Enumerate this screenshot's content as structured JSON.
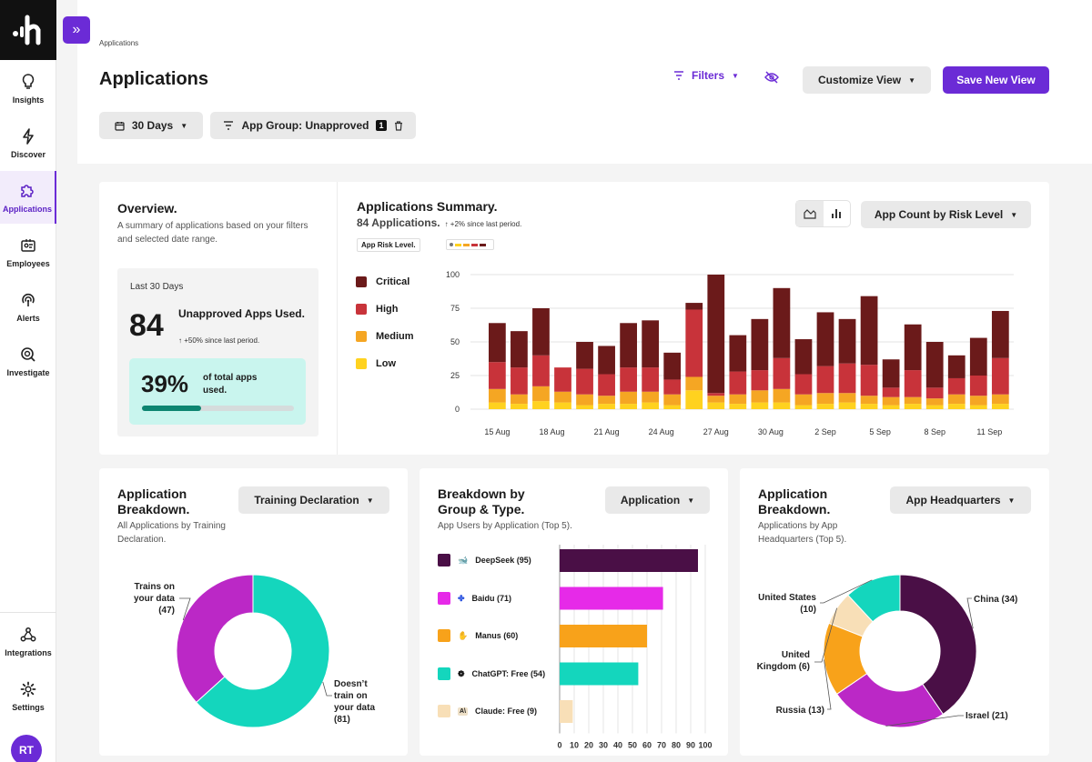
{
  "sidebar": {
    "items": [
      {
        "label": "Insights"
      },
      {
        "label": "Discover"
      },
      {
        "label": "Applications"
      },
      {
        "label": "Employees"
      },
      {
        "label": "Alerts"
      },
      {
        "label": "Investigate"
      },
      {
        "label": "Integrations"
      },
      {
        "label": "Settings"
      }
    ],
    "avatar": "RT"
  },
  "header": {
    "breadcrumb": "Applications",
    "title": "Applications",
    "filters_label": "Filters",
    "customize_label": "Customize View",
    "save_label": "Save New View",
    "date_chip": "30 Days",
    "group_chip": "App Group: Unapproved",
    "group_count": "1"
  },
  "overview": {
    "title": "Overview.",
    "subtitle": "A summary of applications based on your filters and selected date range.",
    "period": "Last 30 Days",
    "count": "84",
    "count_label": "Unapproved Apps Used.",
    "count_change": "↑ +50% since last period.",
    "percent": "39%",
    "percent_label": "of total apps used.",
    "percent_value": 0.39
  },
  "summary": {
    "title": "Applications Summary.",
    "count": "84 Applications.",
    "change": "↑ +2% since last period.",
    "risk_label": "App Risk Level.",
    "dropdown": "App Count by Risk Level"
  },
  "training": {
    "title": "Application Breakdown.",
    "subtitle": "All Applications by Training Declaration.",
    "dropdown": "Training Declaration"
  },
  "group_type": {
    "title": "Breakdown by Group & Type.",
    "subtitle": "App Users by Application (Top 5).",
    "dropdown": "Application"
  },
  "hq": {
    "title": "Application Breakdown.",
    "subtitle": "Applications by App Headquarters (Top 5).",
    "dropdown": "App Headquarters"
  },
  "colors": {
    "accent": "#6b2bd6",
    "critical": "#6b1a1a",
    "high": "#c8333a",
    "medium": "#f5a623",
    "low": "#ffd21f"
  },
  "chart_data": [
    {
      "type": "bar",
      "title": "Applications Summary.",
      "stacked": true,
      "ylim": [
        0,
        100
      ],
      "yticks": [
        0,
        25,
        50,
        75,
        100
      ],
      "xtick_labels": [
        "15 Aug",
        "18 Aug",
        "21 Aug",
        "24 Aug",
        "27 Aug",
        "30 Aug",
        "2 Sep",
        "5 Sep",
        "8 Sep",
        "11 Sep"
      ],
      "series": [
        {
          "name": "Low",
          "color": "#ffd21f",
          "values": [
            5,
            4,
            6,
            5,
            3,
            4,
            4,
            5,
            3,
            14,
            5,
            4,
            5,
            5,
            3,
            4,
            5,
            4,
            3,
            4,
            3,
            4,
            3,
            4
          ]
        },
        {
          "name": "Medium",
          "color": "#f5a623",
          "values": [
            10,
            7,
            11,
            8,
            8,
            6,
            9,
            8,
            8,
            10,
            5,
            7,
            9,
            10,
            8,
            8,
            7,
            6,
            6,
            5,
            5,
            7,
            7,
            7
          ]
        },
        {
          "name": "High",
          "color": "#c8333a",
          "values": [
            20,
            20,
            23,
            18,
            19,
            16,
            18,
            18,
            11,
            50,
            2,
            17,
            15,
            23,
            15,
            20,
            22,
            23,
            7,
            20,
            8,
            12,
            15,
            27
          ]
        },
        {
          "name": "Critical",
          "color": "#6b1a1a",
          "values": [
            29,
            27,
            35,
            0,
            20,
            21,
            33,
            35,
            20,
            5,
            88,
            27,
            38,
            52,
            26,
            40,
            33,
            51,
            21,
            34,
            34,
            17,
            28,
            35
          ]
        }
      ]
    },
    {
      "type": "pie",
      "title": "Application Breakdown.",
      "labels": [
        "Trains on your data (47)",
        "Doesn't train on your data (81)"
      ],
      "values": [
        47,
        81
      ],
      "colors": [
        "#bb28c6",
        "#14d6bd"
      ]
    },
    {
      "type": "bar",
      "orientation": "horizontal",
      "title": "Breakdown by Group & Type.",
      "categories": [
        "DeepSeek (95)",
        "Baidu (71)",
        "Manus (60)",
        "ChatGPT: Free (54)",
        "Claude: Free (9)"
      ],
      "values": [
        95,
        71,
        60,
        54,
        9
      ],
      "colors": [
        "#4a0f46",
        "#e62ae8",
        "#f8a21a",
        "#14d6bd",
        "#f8dfb7"
      ],
      "xlim": [
        0,
        100
      ],
      "xticks": [
        0,
        10,
        20,
        30,
        40,
        50,
        60,
        70,
        80,
        90,
        100
      ]
    },
    {
      "type": "pie",
      "title": "Application Breakdown.",
      "labels": [
        "China (34)",
        "Israel (21)",
        "Russia (13)",
        "United Kingdom (6)",
        "United States (10)"
      ],
      "values": [
        34,
        21,
        13,
        6,
        10
      ],
      "colors": [
        "#4a0f46",
        "#bb28c6",
        "#f8a21a",
        "#f8dfb7",
        "#14d6bd"
      ]
    }
  ]
}
